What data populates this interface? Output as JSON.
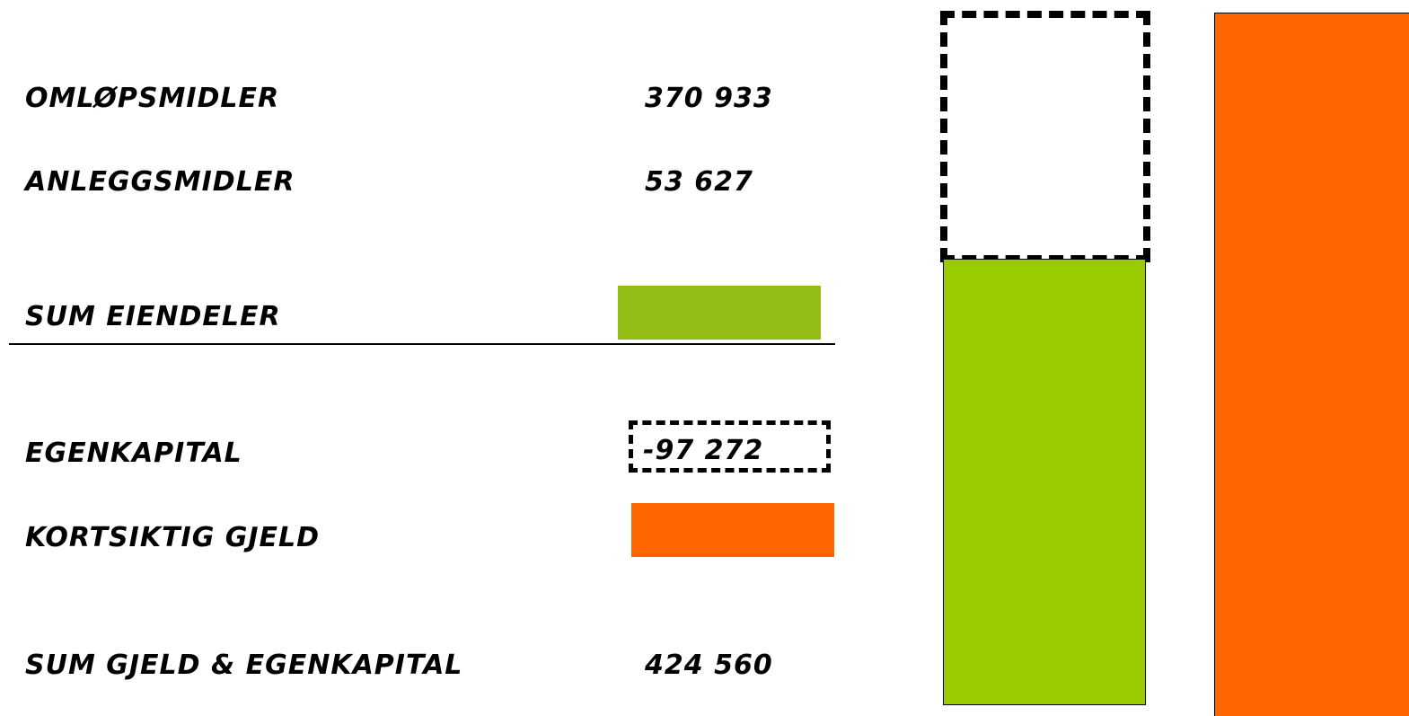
{
  "rows": {
    "omlopsmidler": {
      "label": "OMLØPSMIDLER",
      "value": "370 933"
    },
    "anleggsmidler": {
      "label": "ANLEGGSMIDLER",
      "value": "53 627"
    },
    "sum_eiendeler": {
      "label": "SUM EIENDELER"
    },
    "egenkapital": {
      "label": "EGENKAPITAL",
      "value": "-97 272"
    },
    "kortsiktig_gjeld": {
      "label": "KORTSIKTIG GJELD"
    },
    "sum_gjeld_egenkapital": {
      "label": "SUM GJELD & EGENKAPITAL",
      "value": "424 560"
    }
  },
  "colors": {
    "assets_green": "#99CC00",
    "assets_swatch_green": "#93BE16",
    "liabilities_orange": "#FF6600",
    "text": "#000000"
  }
}
